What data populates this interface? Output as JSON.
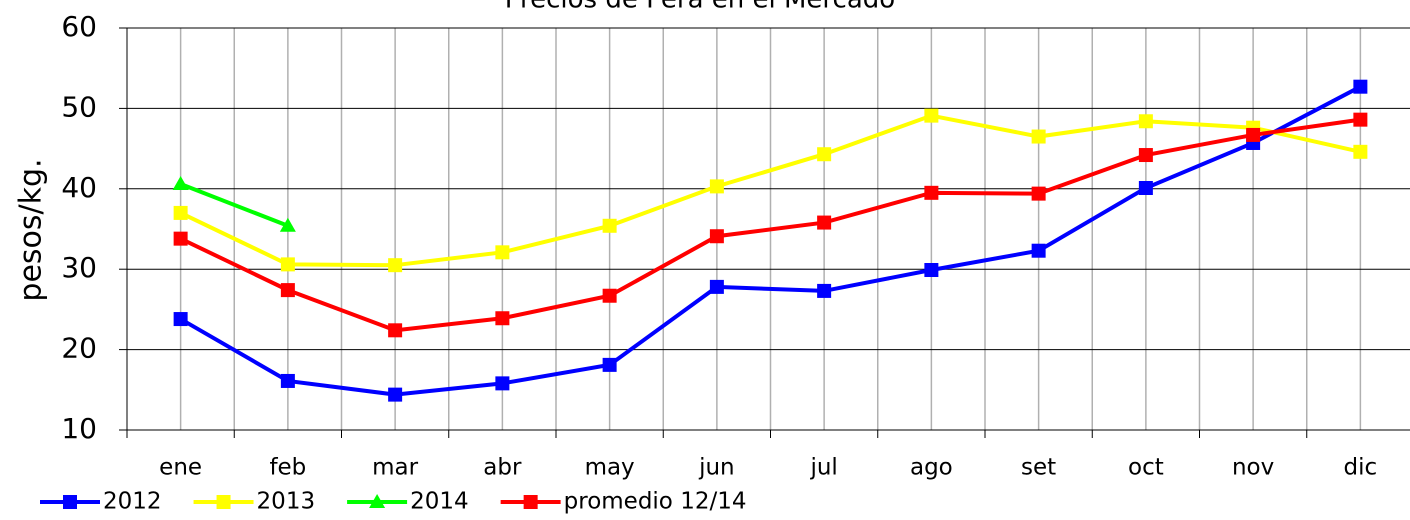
{
  "chart_data": {
    "type": "line",
    "title": "Precios de Pera en el Mercado",
    "ylabel": "pesos/kg.",
    "categories": [
      "ene",
      "feb",
      "mar",
      "abr",
      "may",
      "jun",
      "jul",
      "ago",
      "set",
      "oct",
      "nov",
      "dic"
    ],
    "series": [
      {
        "name": "2012",
        "color": "#0000ff",
        "marker": "square",
        "values": [
          23.8,
          16.1,
          14.4,
          15.8,
          18.1,
          27.8,
          27.3,
          29.9,
          32.3,
          40.1,
          45.7,
          52.7
        ]
      },
      {
        "name": "2013",
        "color": "#ffff00",
        "marker": "square",
        "values": [
          37.0,
          30.6,
          30.5,
          32.1,
          35.4,
          40.3,
          44.3,
          49.1,
          46.5,
          48.4,
          47.6,
          44.6
        ]
      },
      {
        "name": "2014",
        "color": "#00ff00",
        "marker": "triangle",
        "values": [
          40.6,
          35.4,
          null,
          null,
          null,
          null,
          null,
          null,
          null,
          null,
          null,
          null
        ]
      },
      {
        "name": "promedio 12/14",
        "color": "#ff0000",
        "marker": "square",
        "values": [
          33.8,
          27.4,
          22.4,
          23.9,
          26.7,
          34.1,
          35.8,
          39.5,
          39.4,
          44.2,
          46.7,
          48.6
        ]
      }
    ],
    "ylim": [
      10,
      60
    ],
    "yticks": [
      10,
      20,
      30,
      40,
      50,
      60
    ],
    "grid": true,
    "legend": "bottom"
  }
}
